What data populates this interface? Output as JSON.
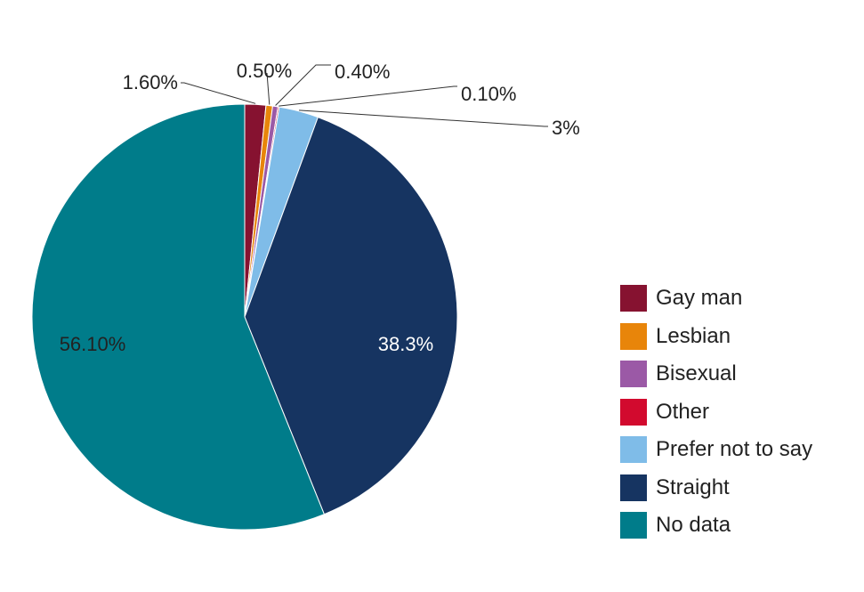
{
  "chart_data": {
    "type": "pie",
    "title": "",
    "slices": [
      {
        "name": "Gay man",
        "value": 1.6,
        "label": "1.60%",
        "color": "#861230"
      },
      {
        "name": "Lesbian",
        "value": 0.5,
        "label": "0.50%",
        "color": "#E8850A"
      },
      {
        "name": "Bisexual",
        "value": 0.4,
        "label": "0.40%",
        "color": "#9B59A6"
      },
      {
        "name": "Other",
        "value": 0.1,
        "label": "0.10%",
        "color": "#D20A2E"
      },
      {
        "name": "Prefer not to say",
        "value": 3.0,
        "label": "3%",
        "color": "#7FBCE8"
      },
      {
        "name": "Straight",
        "value": 38.3,
        "label": "38.3%",
        "color": "#163461"
      },
      {
        "name": "No data",
        "value": 56.1,
        "label": "56.10%",
        "color": "#007C8A"
      }
    ],
    "legend_placement": "right"
  }
}
